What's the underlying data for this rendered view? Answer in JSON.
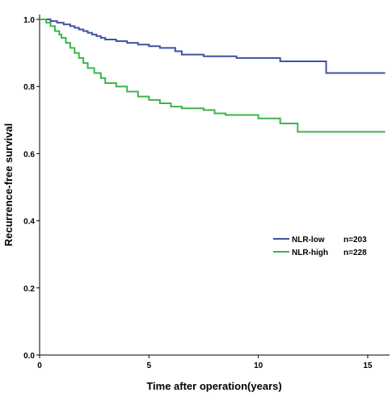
{
  "chart_data": {
    "type": "line",
    "xlabel": "Time after operation(years)",
    "ylabel": "Recurrence-free survival",
    "xlim": [
      0,
      16
    ],
    "ylim": [
      0,
      1.0
    ],
    "x_ticks": [
      "0",
      "5",
      "10",
      "15"
    ],
    "y_ticks": [
      "0.0",
      "0.2",
      "0.4",
      "0.6",
      "0.8",
      "1.0"
    ],
    "grid": false,
    "legend_position": "right-middle",
    "step": true,
    "series": [
      {
        "name": "NLR-low",
        "n_label": "n=203",
        "color": "#3f51a3",
        "points": [
          [
            0,
            1.0
          ],
          [
            0.5,
            0.995
          ],
          [
            0.8,
            0.99
          ],
          [
            1.1,
            0.985
          ],
          [
            1.4,
            0.98
          ],
          [
            1.6,
            0.975
          ],
          [
            1.8,
            0.97
          ],
          [
            2.0,
            0.965
          ],
          [
            2.2,
            0.96
          ],
          [
            2.4,
            0.955
          ],
          [
            2.6,
            0.95
          ],
          [
            2.8,
            0.945
          ],
          [
            3.0,
            0.94
          ],
          [
            3.5,
            0.935
          ],
          [
            4.0,
            0.93
          ],
          [
            4.5,
            0.925
          ],
          [
            5.0,
            0.92
          ],
          [
            5.5,
            0.915
          ],
          [
            6.2,
            0.905
          ],
          [
            6.5,
            0.895
          ],
          [
            7.5,
            0.89
          ],
          [
            9.0,
            0.885
          ],
          [
            11.0,
            0.875
          ],
          [
            13.1,
            0.84
          ],
          [
            15.8,
            0.84
          ]
        ]
      },
      {
        "name": "NLR-high",
        "n_label": "n=228",
        "color": "#3cb54a",
        "points": [
          [
            0,
            1.0
          ],
          [
            0.3,
            0.99
          ],
          [
            0.5,
            0.98
          ],
          [
            0.7,
            0.965
          ],
          [
            0.9,
            0.955
          ],
          [
            1.0,
            0.945
          ],
          [
            1.2,
            0.93
          ],
          [
            1.4,
            0.915
          ],
          [
            1.6,
            0.9
          ],
          [
            1.8,
            0.885
          ],
          [
            2.0,
            0.87
          ],
          [
            2.2,
            0.855
          ],
          [
            2.5,
            0.84
          ],
          [
            2.8,
            0.825
          ],
          [
            3.0,
            0.81
          ],
          [
            3.5,
            0.8
          ],
          [
            4.0,
            0.785
          ],
          [
            4.5,
            0.77
          ],
          [
            5.0,
            0.76
          ],
          [
            5.5,
            0.75
          ],
          [
            6.0,
            0.74
          ],
          [
            6.5,
            0.735
          ],
          [
            7.5,
            0.73
          ],
          [
            8.0,
            0.72
          ],
          [
            8.5,
            0.715
          ],
          [
            10.0,
            0.705
          ],
          [
            11.0,
            0.69
          ],
          [
            11.8,
            0.665
          ],
          [
            15.8,
            0.665
          ]
        ]
      }
    ]
  }
}
